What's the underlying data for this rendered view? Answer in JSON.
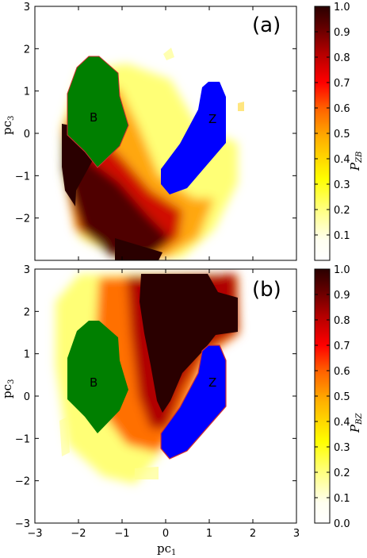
{
  "chart_data": [
    {
      "type": "heatmap",
      "panel_label": "(a)",
      "xlabel": "",
      "ylabel_main": "pc",
      "ylabel_sub": "3",
      "xlim": [
        -3,
        3
      ],
      "ylim": [
        -3,
        3
      ],
      "xticks": [
        -3,
        -2,
        -1,
        0,
        1,
        2,
        3
      ],
      "yticks": [
        -2,
        -1,
        0,
        1,
        2,
        3
      ],
      "x_tick_labels_visible": false,
      "colorbar": {
        "label_main": "P",
        "label_sub": "ZB",
        "ticks": [
          0.1,
          0.2,
          0.3,
          0.4,
          0.5,
          0.6,
          0.7,
          0.8,
          0.9,
          1.0
        ],
        "tick_labels": [
          "0.1",
          "0.2",
          "0.3",
          "0.4",
          "0.5",
          "0.6",
          "0.7",
          "0.8",
          "0.9",
          "1.0"
        ],
        "range": [
          0.0,
          1.0
        ]
      },
      "regions": [
        {
          "label": "B",
          "color": "#007f00",
          "center": [
            -1.65,
            0.35
          ]
        },
        {
          "label": "Z",
          "color": "#0000ff",
          "center": [
            1.0,
            0.35
          ]
        }
      ],
      "colormap": "hot_r",
      "grid": false
    },
    {
      "type": "heatmap",
      "panel_label": "(b)",
      "xlabel_main": "pc",
      "xlabel_sub": "1",
      "ylabel_main": "pc",
      "ylabel_sub": "3",
      "xlim": [
        -3,
        3
      ],
      "ylim": [
        -3,
        3
      ],
      "xticks": [
        -3,
        -2,
        -1,
        0,
        1,
        2,
        3
      ],
      "yticks": [
        -3,
        -2,
        -1,
        0,
        1,
        2,
        3
      ],
      "x_tick_labels": [
        "−3",
        "−2",
        "−1",
        "0",
        "1",
        "2",
        "3"
      ],
      "y_tick_labels": [
        "−3",
        "−2",
        "−1",
        "0",
        "1",
        "2",
        "3"
      ],
      "colorbar": {
        "label_main": "P",
        "label_sub": "BZ",
        "ticks": [
          0.0,
          0.1,
          0.2,
          0.3,
          0.4,
          0.5,
          0.6,
          0.7,
          0.8,
          0.9,
          1.0
        ],
        "tick_labels": [
          "0.0",
          "0.1",
          "0.2",
          "0.3",
          "0.4",
          "0.5",
          "0.6",
          "0.7",
          "0.8",
          "0.9",
          "1.0"
        ],
        "range": [
          0.0,
          1.0
        ]
      },
      "regions": [
        {
          "label": "B",
          "color": "#007f00",
          "center": [
            -1.65,
            0.35
          ]
        },
        {
          "label": "Z",
          "color": "#0000ff",
          "center": [
            1.0,
            0.35
          ]
        }
      ],
      "colormap": "hot_r",
      "grid": false
    }
  ],
  "panel_a_y_tick_labels": [
    "−2",
    "−1",
    "0",
    "1",
    "2",
    "3"
  ]
}
